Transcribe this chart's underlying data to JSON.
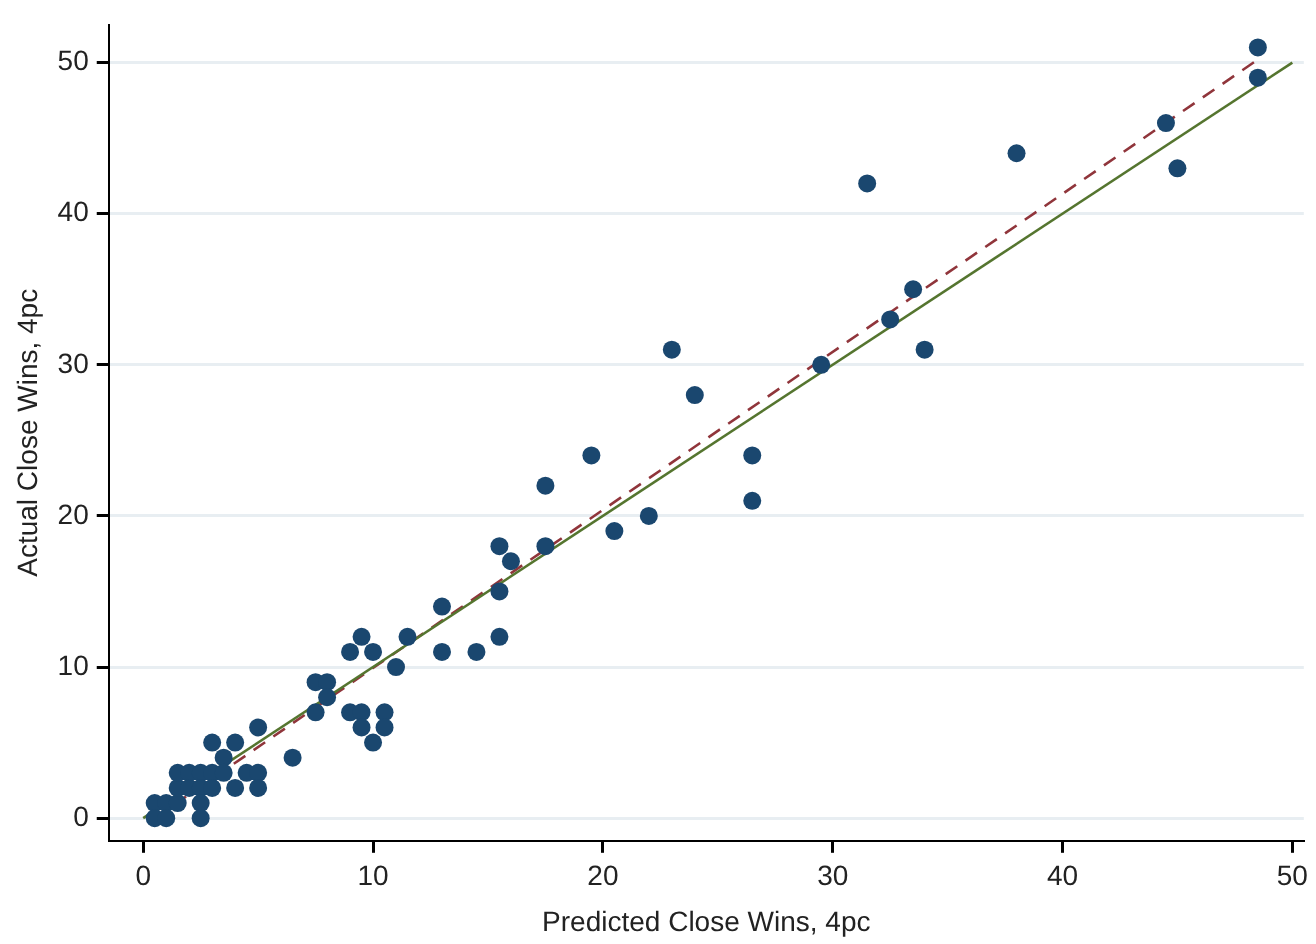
{
  "chart_data": {
    "type": "scatter",
    "xlabel": "Predicted Close Wins, 4pc",
    "ylabel": "Actual Close Wins, 4pc",
    "xlim": [
      -1.5,
      50.5
    ],
    "ylim": [
      -1.5,
      52.5
    ],
    "xticks": [
      0,
      10,
      20,
      30,
      40,
      50
    ],
    "yticks": [
      0,
      10,
      20,
      30,
      40,
      50
    ],
    "grid": "y",
    "legend": false,
    "marker": "circle",
    "series": [
      {
        "color": "#1a476f",
        "x": [
          0.5,
          1,
          0.5,
          1,
          1.5,
          1.5,
          1.5,
          2,
          2,
          2.5,
          2.5,
          2.5,
          2.5,
          3,
          3,
          3,
          3.5,
          3.5,
          4,
          4,
          4.5,
          5,
          5,
          5,
          6.5,
          7.5,
          8,
          8,
          7.5,
          9,
          9.5,
          10.5,
          9.5,
          10.5,
          10,
          11,
          9.5,
          9,
          10,
          11.5,
          13,
          13,
          14.5,
          15.5,
          15.5,
          15.5,
          16,
          17.5,
          17.5,
          20.5,
          22,
          19.5,
          26.5,
          26.5,
          24,
          23,
          29.5,
          34,
          32.5,
          33.5,
          31.5,
          38,
          45,
          44.5,
          48.5,
          48.5
        ],
        "values": [
          1,
          1,
          0,
          0,
          1,
          2,
          3,
          3,
          2,
          3,
          2,
          1,
          0,
          3,
          2,
          5,
          4,
          3,
          5,
          2,
          3,
          3,
          2,
          6,
          4,
          9,
          9,
          8,
          7,
          7,
          7,
          7,
          6,
          6,
          5,
          10,
          12,
          11,
          11,
          12,
          14,
          11,
          11,
          18,
          15,
          12,
          17,
          22,
          18,
          19,
          20,
          24,
          24,
          21,
          28,
          31,
          30,
          31,
          33,
          35,
          42,
          44,
          43,
          46,
          51,
          49
        ]
      },
      {
        "type": "line",
        "color": "#55752f",
        "line_style": "solid",
        "marker": "none",
        "x": [
          0,
          50
        ],
        "values": [
          0,
          50
        ]
      },
      {
        "type": "line",
        "color": "#90353b",
        "line_style": "dashed",
        "marker": "none",
        "x": [
          0.5,
          48.5
        ],
        "values": [
          0,
          50.2
        ]
      }
    ]
  }
}
